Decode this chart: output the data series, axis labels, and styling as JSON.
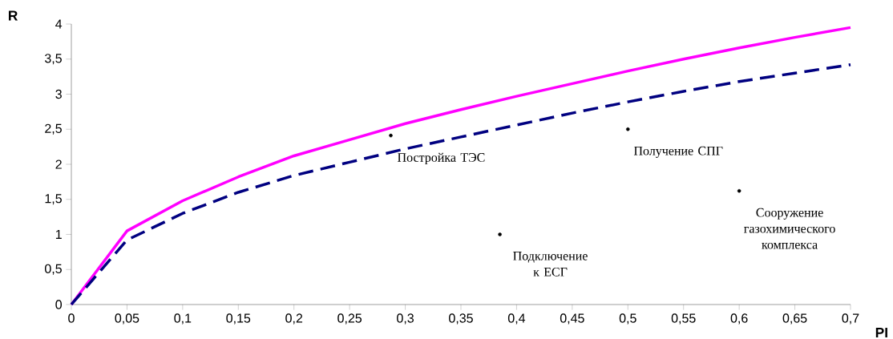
{
  "chart_data": {
    "type": "line",
    "xlabel": "PI",
    "ylabel": "R",
    "x": [
      0,
      0.05,
      0.1,
      0.15,
      0.2,
      0.25,
      0.3,
      0.35,
      0.4,
      0.45,
      0.5,
      0.55,
      0.6,
      0.65,
      0.7
    ],
    "series": [
      {
        "color": "#ff00ff",
        "line_style": "solid",
        "values": [
          0,
          1.05,
          1.48,
          1.82,
          2.12,
          2.35,
          2.58,
          2.78,
          2.97,
          3.15,
          3.33,
          3.5,
          3.66,
          3.81,
          3.95
        ]
      },
      {
        "color": "#000080",
        "line_style": "dashed",
        "values": [
          0,
          0.92,
          1.3,
          1.6,
          1.84,
          2.03,
          2.22,
          2.39,
          2.56,
          2.73,
          2.89,
          3.04,
          3.18,
          3.3,
          3.42
        ]
      },
      {
        "type": "scatter",
        "color": "#000000",
        "marker": "circle",
        "x": [
          0.287,
          0.385,
          0.5,
          0.6
        ],
        "values": [
          2.41,
          1.0,
          2.5,
          1.62
        ]
      }
    ],
    "xlim": [
      0,
      0.7
    ],
    "ylim": [
      0,
      4
    ],
    "xticks": [
      0,
      {
        "value": 0.05,
        "label": "0,05"
      },
      {
        "value": 0.1,
        "label": "0,1"
      },
      {
        "value": 0.15,
        "label": "0,15"
      },
      {
        "value": 0.2,
        "label": "0,2"
      },
      {
        "value": 0.25,
        "label": "0,25"
      },
      {
        "value": 0.3,
        "label": "0,3"
      },
      {
        "value": 0.35,
        "label": "0,35"
      },
      {
        "value": 0.4,
        "label": "0,4"
      },
      {
        "value": 0.45,
        "label": "0,45"
      },
      {
        "value": 0.5,
        "label": "0,5"
      },
      {
        "value": 0.55,
        "label": "0,55"
      },
      {
        "value": 0.6,
        "label": "0,6"
      },
      {
        "value": 0.65,
        "label": "0,65"
      },
      {
        "value": 0.7,
        "label": "0,7"
      }
    ],
    "yticks": [
      0,
      {
        "value": 0.5,
        "label": "0,5"
      },
      1,
      {
        "value": 1.5,
        "label": "1,5"
      },
      2,
      {
        "value": 2.5,
        "label": "2,5"
      },
      3,
      {
        "value": 3.5,
        "label": "3,5"
      },
      4
    ],
    "grid": false,
    "annotations": [
      {
        "text": "Постройка ТЭС",
        "x": 0.287,
        "y": 2.41
      },
      {
        "text": "Подключение к ЕСГ",
        "x": 0.385,
        "y": 1.0
      },
      {
        "text": "Получение СПГ",
        "x": 0.5,
        "y": 2.5
      },
      {
        "text": "Сооружение газохимического комплекса",
        "x": 0.6,
        "y": 1.62
      }
    ]
  }
}
